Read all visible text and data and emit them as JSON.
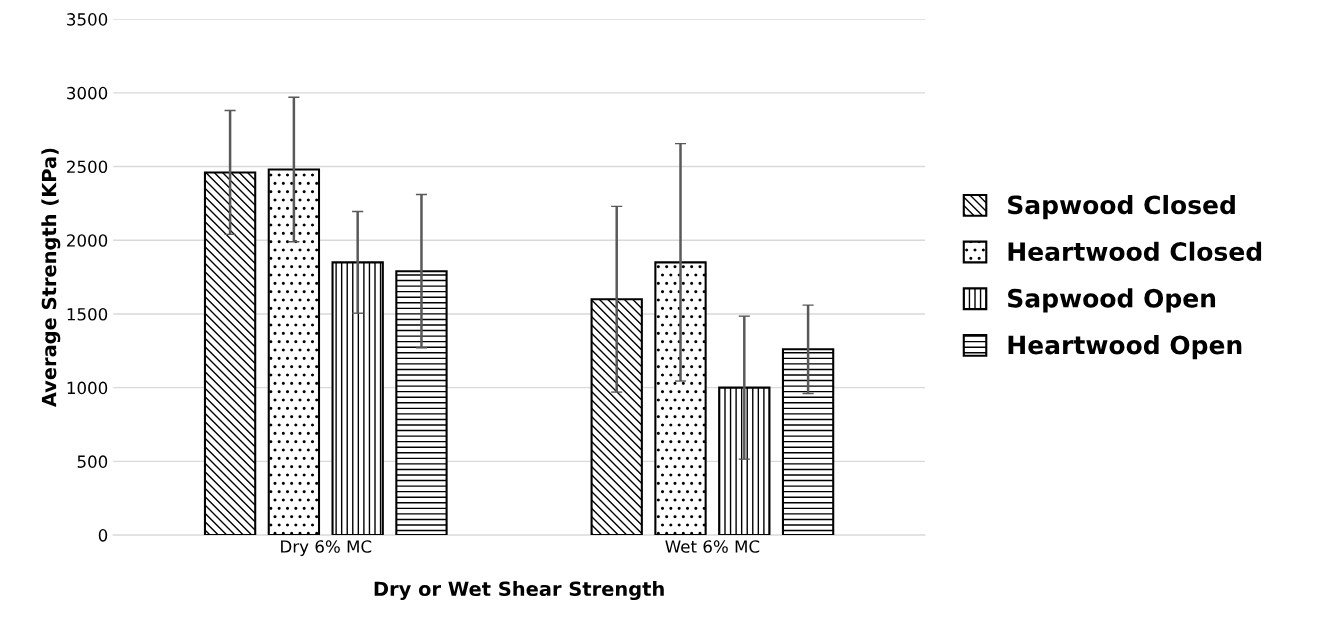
{
  "chart_data": {
    "type": "bar",
    "xlabel": "Dry or Wet Shear Strength",
    "ylabel": "Average Strength (KPa)",
    "categories": [
      "Dry 6% MC",
      "Wet 6% MC"
    ],
    "series": [
      {
        "name": "Sapwood Closed",
        "color": "#000000",
        "values": [
          2460,
          1600
        ],
        "errors": [
          420,
          630
        ]
      },
      {
        "name": "Heartwood Closed",
        "color": "#000000",
        "values": [
          2480,
          1850
        ],
        "errors": [
          490,
          805
        ]
      },
      {
        "name": "Sapwood Open",
        "color": "#000000",
        "values": [
          1850,
          1000
        ],
        "errors": [
          345,
          485
        ]
      },
      {
        "name": "Heartwood Open",
        "color": "#000000",
        "values": [
          1790,
          1260
        ],
        "errors": [
          520,
          300
        ]
      }
    ],
    "ylim": [
      0,
      3500
    ],
    "yticks": [
      0,
      500,
      1000,
      1500,
      2000,
      2500,
      3000,
      3500
    ],
    "grid": "y",
    "legend": "right"
  }
}
